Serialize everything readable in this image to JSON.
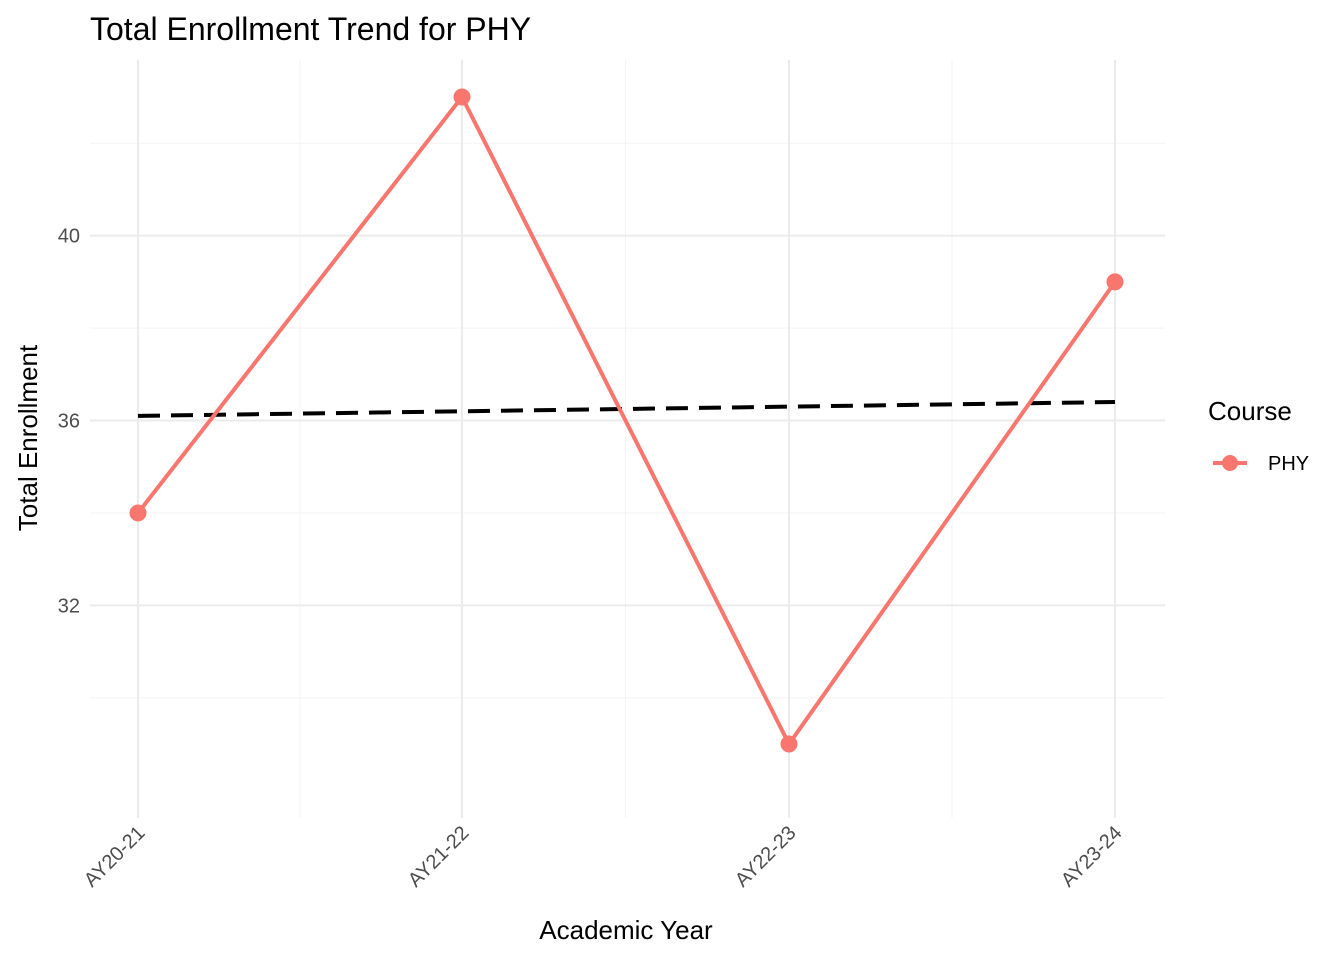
{
  "chart_data": {
    "type": "line",
    "title": "Total Enrollment Trend for PHY",
    "xlabel": "Academic Year",
    "ylabel": "Total Enrollment",
    "categories": [
      "AY20-21",
      "AY21-22",
      "AY22-23",
      "AY23-24"
    ],
    "series": [
      {
        "name": "PHY",
        "values": [
          34,
          43,
          29,
          39
        ],
        "color": "#F8766D",
        "markers": true
      }
    ],
    "trendline": {
      "style": "dashed",
      "color": "#000000",
      "start": 36.1,
      "end": 36.4
    },
    "yticks": [
      32,
      36,
      40
    ],
    "ylim": [
      27.4,
      43.8
    ],
    "grid": true,
    "legend": {
      "title": "Course",
      "position": "right"
    }
  }
}
